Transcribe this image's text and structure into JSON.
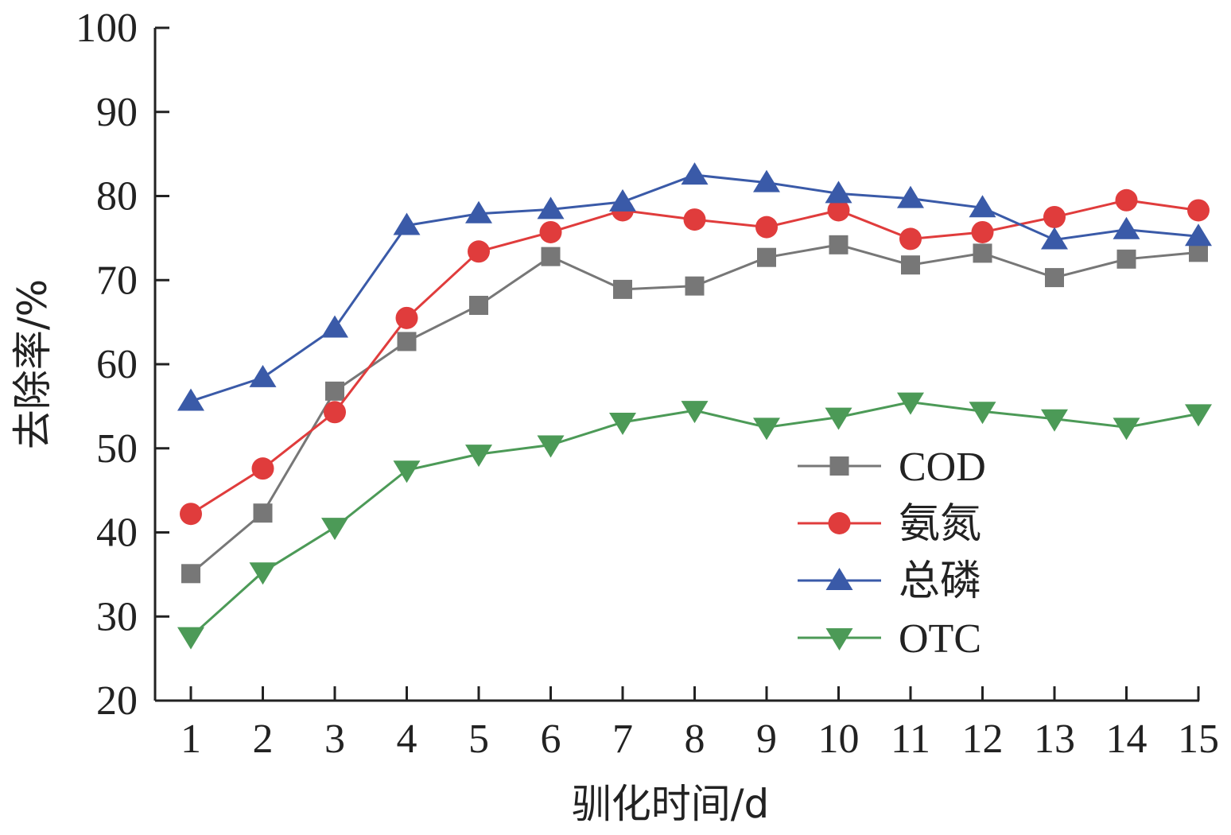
{
  "chart_data": {
    "type": "line",
    "title": "",
    "xlabel": "驯化时间/d",
    "ylabel": "去除率/%",
    "categories": [
      "1",
      "2",
      "3",
      "4",
      "5",
      "6",
      "7",
      "8",
      "9",
      "10",
      "11",
      "12",
      "13",
      "14",
      "15"
    ],
    "ylim": [
      20,
      100
    ],
    "yticks": [
      20,
      30,
      40,
      50,
      60,
      70,
      80,
      90,
      100
    ],
    "legend_position": "center-right",
    "grid": false,
    "series": [
      {
        "name": "COD",
        "color": "#777777",
        "marker": "square",
        "values": [
          35.1,
          42.3,
          56.8,
          62.7,
          67.0,
          72.8,
          68.9,
          69.3,
          72.7,
          74.2,
          71.8,
          73.2,
          70.3,
          72.5,
          73.3
        ]
      },
      {
        "name": "氨氮",
        "color": "#e03c3c",
        "marker": "circle",
        "values": [
          42.2,
          47.6,
          54.3,
          65.5,
          73.4,
          75.7,
          78.3,
          77.2,
          76.3,
          78.3,
          74.9,
          75.7,
          77.5,
          79.5,
          78.3
        ]
      },
      {
        "name": "总磷",
        "color": "#3a5aa8",
        "marker": "triangle-up",
        "values": [
          55.6,
          58.4,
          64.3,
          76.5,
          77.9,
          78.4,
          79.3,
          82.5,
          81.6,
          80.3,
          79.7,
          78.6,
          74.8,
          76.0,
          75.2
        ]
      },
      {
        "name": "OTC",
        "color": "#4c9a57",
        "marker": "triangle-down",
        "values": [
          27.6,
          35.3,
          40.6,
          47.4,
          49.3,
          50.4,
          53.1,
          54.5,
          52.5,
          53.7,
          55.5,
          54.4,
          53.5,
          52.5,
          54.1
        ]
      }
    ]
  }
}
